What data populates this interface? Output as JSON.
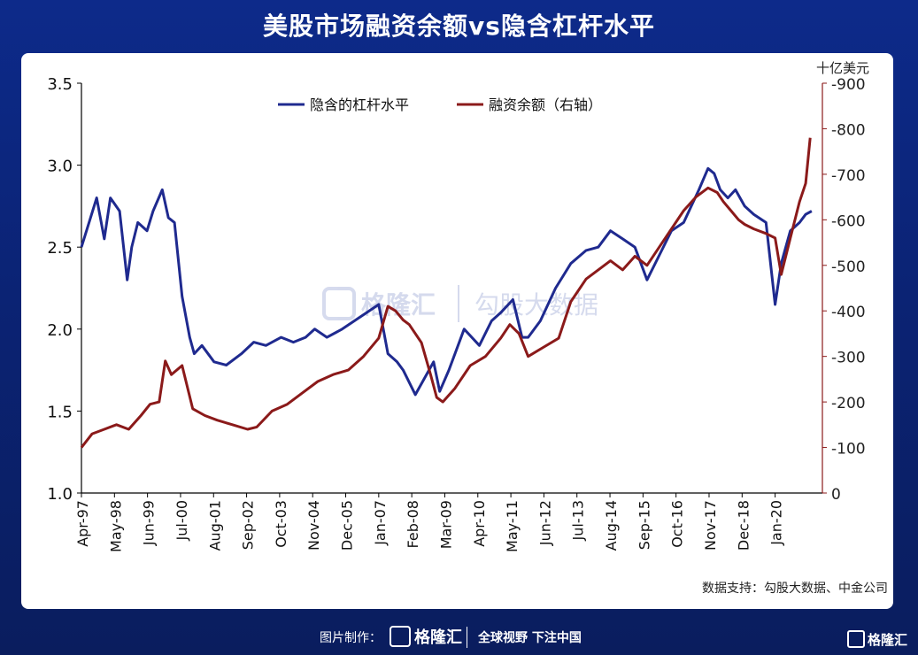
{
  "page": {
    "title": "美股市场融资余额vs隐含杠杆水平",
    "source": "数据支持：勾股大数据、中金公司",
    "footer": {
      "made_by": "图片制作：",
      "logo_text": "格隆汇",
      "slogan": "全球视野 下注中国",
      "brand": "格隆汇"
    },
    "watermark": {
      "logo": "格隆汇",
      "text": "勾股大数据"
    }
  },
  "colors": {
    "left_series": "#1f2a8f",
    "right_series": "#8b1a1a"
  },
  "chart_data": {
    "type": "line",
    "legend_position": "top",
    "legend": [
      "隐含的杠杆水平",
      "融资余额（右轴）"
    ],
    "right_axis_unit": "十亿美元",
    "x_tick_labels": [
      "Apr-97",
      "May-98",
      "Jun-99",
      "Jul-00",
      "Aug-01",
      "Sep-02",
      "Oct-03",
      "Nov-04",
      "Dec-05",
      "Jan-07",
      "Feb-08",
      "Mar-09",
      "Apr-10",
      "May-11",
      "Jun-12",
      "Jul-13",
      "Aug-14",
      "Sep-15",
      "Oct-16",
      "Nov-17",
      "Dec-18",
      "Jan-20"
    ],
    "y_left": {
      "range": [
        1.0,
        3.5
      ],
      "ticks": [
        "1.0",
        "1.5",
        "2.0",
        "2.5",
        "3.0",
        "3.5"
      ]
    },
    "y_right": {
      "range": [
        0,
        900
      ],
      "ticks": [
        "0",
        "-100",
        "-200",
        "-300",
        "-400",
        "-500",
        "-600",
        "-700",
        "-800",
        "-900"
      ]
    },
    "grid": false,
    "series": [
      {
        "name": "隐含的杠杆水平",
        "axis": "left",
        "x": [
          1997.25,
          1997.5,
          1997.75,
          1998.0,
          1998.2,
          1998.5,
          1998.75,
          1998.9,
          1999.1,
          1999.4,
          1999.6,
          1999.9,
          2000.1,
          2000.3,
          2000.55,
          2000.8,
          2000.95,
          2001.2,
          2001.6,
          2002.0,
          2002.5,
          2002.9,
          2003.3,
          2003.8,
          2004.2,
          2004.6,
          2004.9,
          2005.3,
          2005.8,
          2006.2,
          2006.6,
          2007.0,
          2007.3,
          2007.6,
          2007.8,
          2008.2,
          2008.5,
          2008.8,
          2009.0,
          2009.3,
          2009.8,
          2010.3,
          2010.7,
          2011.0,
          2011.4,
          2011.7,
          2011.9,
          2012.3,
          2012.8,
          2013.3,
          2013.8,
          2014.2,
          2014.6,
          2015.0,
          2015.4,
          2015.8,
          2016.2,
          2016.6,
          2017.0,
          2017.5,
          2017.8,
          2018.0,
          2018.2,
          2018.45,
          2018.7,
          2019.0,
          2019.3,
          2019.7,
          2020.0,
          2020.2,
          2020.5,
          2020.8,
          2021.0,
          2021.2
        ],
        "values": [
          2.5,
          2.65,
          2.8,
          2.55,
          2.8,
          2.72,
          2.3,
          2.5,
          2.65,
          2.6,
          2.72,
          2.85,
          2.68,
          2.65,
          2.2,
          1.95,
          1.85,
          1.9,
          1.8,
          1.78,
          1.85,
          1.92,
          1.9,
          1.95,
          1.92,
          1.95,
          2.0,
          1.95,
          2.0,
          2.05,
          2.1,
          2.15,
          1.85,
          1.8,
          1.75,
          1.6,
          1.7,
          1.8,
          1.62,
          1.75,
          2.0,
          1.9,
          2.05,
          2.1,
          2.18,
          1.95,
          1.95,
          2.05,
          2.25,
          2.4,
          2.48,
          2.5,
          2.6,
          2.55,
          2.5,
          2.3,
          2.45,
          2.6,
          2.65,
          2.85,
          2.98,
          2.95,
          2.85,
          2.8,
          2.85,
          2.75,
          2.7,
          2.65,
          2.15,
          2.4,
          2.6,
          2.65,
          2.7,
          2.72
        ]
      },
      {
        "name": "融资余额（右轴）",
        "axis": "right",
        "x": [
          1997.25,
          1997.6,
          1998.0,
          1998.4,
          1998.8,
          1999.2,
          1999.5,
          1999.8,
          2000.0,
          2000.2,
          2000.55,
          2000.9,
          2001.3,
          2001.7,
          2002.2,
          2002.7,
          2003.0,
          2003.5,
          2004.0,
          2004.5,
          2005.0,
          2005.5,
          2006.0,
          2006.5,
          2007.0,
          2007.3,
          2007.55,
          2007.8,
          2008.0,
          2008.4,
          2008.7,
          2008.9,
          2009.1,
          2009.5,
          2010.0,
          2010.5,
          2011.0,
          2011.3,
          2011.6,
          2011.9,
          2012.4,
          2012.9,
          2013.3,
          2013.8,
          2014.2,
          2014.6,
          2015.0,
          2015.4,
          2015.8,
          2016.2,
          2016.6,
          2017.0,
          2017.4,
          2017.8,
          2018.1,
          2018.3,
          2018.55,
          2018.8,
          2019.0,
          2019.3,
          2019.7,
          2020.0,
          2020.2,
          2020.5,
          2020.8,
          2021.0,
          2021.15
        ],
        "values": [
          100,
          130,
          140,
          150,
          140,
          170,
          195,
          200,
          290,
          260,
          280,
          185,
          170,
          160,
          150,
          140,
          145,
          180,
          195,
          220,
          245,
          260,
          270,
          300,
          340,
          410,
          400,
          380,
          370,
          330,
          260,
          210,
          200,
          230,
          280,
          300,
          340,
          370,
          350,
          300,
          320,
          340,
          420,
          470,
          490,
          510,
          490,
          520,
          500,
          540,
          580,
          620,
          650,
          670,
          660,
          640,
          620,
          600,
          590,
          580,
          570,
          560,
          480,
          560,
          640,
          680,
          780
        ]
      }
    ]
  }
}
